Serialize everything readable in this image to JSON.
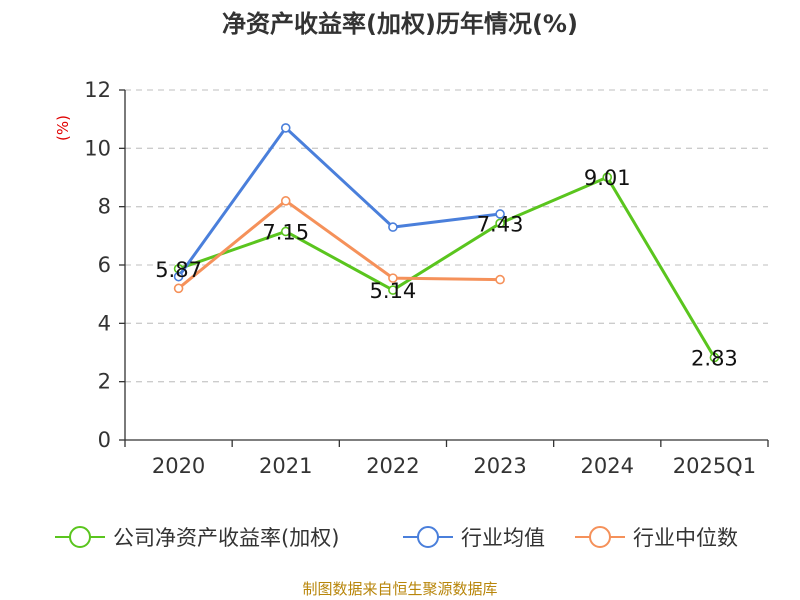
{
  "chart_data": {
    "type": "line",
    "title": "净资产收益率(加权)历年情况(%)",
    "ylabel": "(%)",
    "categories": [
      "2020",
      "2021",
      "2022",
      "2023",
      "2024",
      "2025Q1"
    ],
    "ylim": [
      0,
      12
    ],
    "yticks": [
      0,
      2,
      4,
      6,
      8,
      10,
      12
    ],
    "grid": true,
    "legend_position": "bottom",
    "series": [
      {
        "name": "公司净资产收益率(加权)",
        "color": "#5ac51e",
        "values": [
          5.87,
          7.15,
          5.14,
          7.43,
          9.01,
          2.83
        ],
        "show_labels": true
      },
      {
        "name": "行业均值",
        "color": "#4a7fdb",
        "values": [
          5.6,
          10.7,
          7.3,
          7.75,
          null,
          null
        ],
        "show_labels": false
      },
      {
        "name": "行业中位数",
        "color": "#f5915a",
        "values": [
          5.2,
          8.2,
          5.55,
          5.5,
          null,
          null
        ],
        "show_labels": false
      }
    ]
  },
  "source": "制图数据来自恒生聚源数据库"
}
